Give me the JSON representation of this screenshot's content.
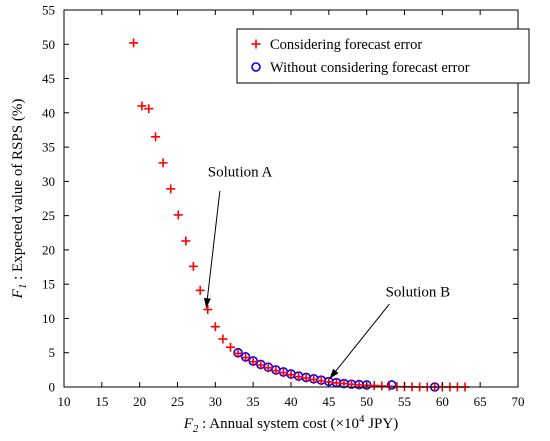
{
  "chart_data": {
    "type": "scatter",
    "xlabel": {
      "var": "F",
      "sub": "2",
      "text": ": Annual system cost (×10",
      "sup": "4",
      "unit": " JPY)"
    },
    "ylabel": {
      "var": "F",
      "sub": "1",
      "text": ": Expected value of  RSPS (%)"
    },
    "xlim": [
      10,
      70
    ],
    "ylim": [
      0,
      55
    ],
    "xticks": [
      10,
      15,
      20,
      25,
      30,
      35,
      40,
      45,
      50,
      55,
      60,
      65,
      70
    ],
    "yticks": [
      0,
      5,
      10,
      15,
      20,
      25,
      30,
      35,
      40,
      45,
      50,
      55
    ],
    "grid": false,
    "legend_position": "top-right",
    "series": [
      {
        "name": "Considering forecast error",
        "marker": "plus",
        "color": "#ff0000",
        "points": [
          [
            19.2,
            50.2
          ],
          [
            20.3,
            41.0
          ],
          [
            21.2,
            40.6
          ],
          [
            22.1,
            36.5
          ],
          [
            23.1,
            32.7
          ],
          [
            24.1,
            28.9
          ],
          [
            25.1,
            25.1
          ],
          [
            26.1,
            21.3
          ],
          [
            27.1,
            17.6
          ],
          [
            28.0,
            14.1
          ],
          [
            29.0,
            11.3
          ],
          [
            30.0,
            8.8
          ],
          [
            31.0,
            7.0
          ],
          [
            32.0,
            5.8
          ],
          [
            33.0,
            4.9
          ],
          [
            34.0,
            4.3
          ],
          [
            35.0,
            3.7
          ],
          [
            36.0,
            3.2
          ],
          [
            37.0,
            2.8
          ],
          [
            38.0,
            2.4
          ],
          [
            39.0,
            2.1
          ],
          [
            40.0,
            1.8
          ],
          [
            41.0,
            1.5
          ],
          [
            42.0,
            1.3
          ],
          [
            43.0,
            1.1
          ],
          [
            44.0,
            0.9
          ],
          [
            45.0,
            0.75
          ],
          [
            46.0,
            0.6
          ],
          [
            47.0,
            0.5
          ],
          [
            48.0,
            0.4
          ],
          [
            49.0,
            0.3
          ],
          [
            50.0,
            0.25
          ],
          [
            51.0,
            0.2
          ],
          [
            52.0,
            0.15
          ],
          [
            53.0,
            0.1
          ],
          [
            54.0,
            0.05
          ],
          [
            55.0,
            0.03
          ],
          [
            56.0,
            0.02
          ],
          [
            57.0,
            0.0
          ],
          [
            58.0,
            0.0
          ],
          [
            59.0,
            0.0
          ],
          [
            60.0,
            0.0
          ],
          [
            61.0,
            0.0
          ],
          [
            62.0,
            0.0
          ],
          [
            63.0,
            0.0
          ]
        ]
      },
      {
        "name": "Without considering forecast error",
        "marker": "circle",
        "color": "#0000ff",
        "points": [
          [
            33.0,
            5.0
          ],
          [
            34.0,
            4.4
          ],
          [
            35.0,
            3.8
          ],
          [
            36.0,
            3.3
          ],
          [
            37.0,
            2.9
          ],
          [
            38.0,
            2.5
          ],
          [
            39.0,
            2.2
          ],
          [
            40.0,
            1.9
          ],
          [
            41.0,
            1.6
          ],
          [
            42.0,
            1.4
          ],
          [
            43.0,
            1.2
          ],
          [
            44.0,
            1.0
          ],
          [
            45.0,
            0.8
          ],
          [
            46.0,
            0.65
          ],
          [
            47.0,
            0.5
          ],
          [
            48.0,
            0.4
          ],
          [
            49.0,
            0.35
          ],
          [
            50.0,
            0.3
          ],
          [
            53.3,
            0.3
          ],
          [
            59.0,
            0.0
          ]
        ]
      }
    ],
    "annotations": [
      {
        "text": "Solution A",
        "text_at": [
          29.0,
          30.7
        ],
        "arrow_from": [
          30.6,
          28.6
        ],
        "arrow_to": [
          28.8,
          11.5
        ]
      },
      {
        "text": "Solution B",
        "text_at": [
          52.5,
          13.2
        ],
        "arrow_from": [
          53.0,
          12.1
        ],
        "arrow_to": [
          45.1,
          1.2
        ]
      }
    ]
  }
}
